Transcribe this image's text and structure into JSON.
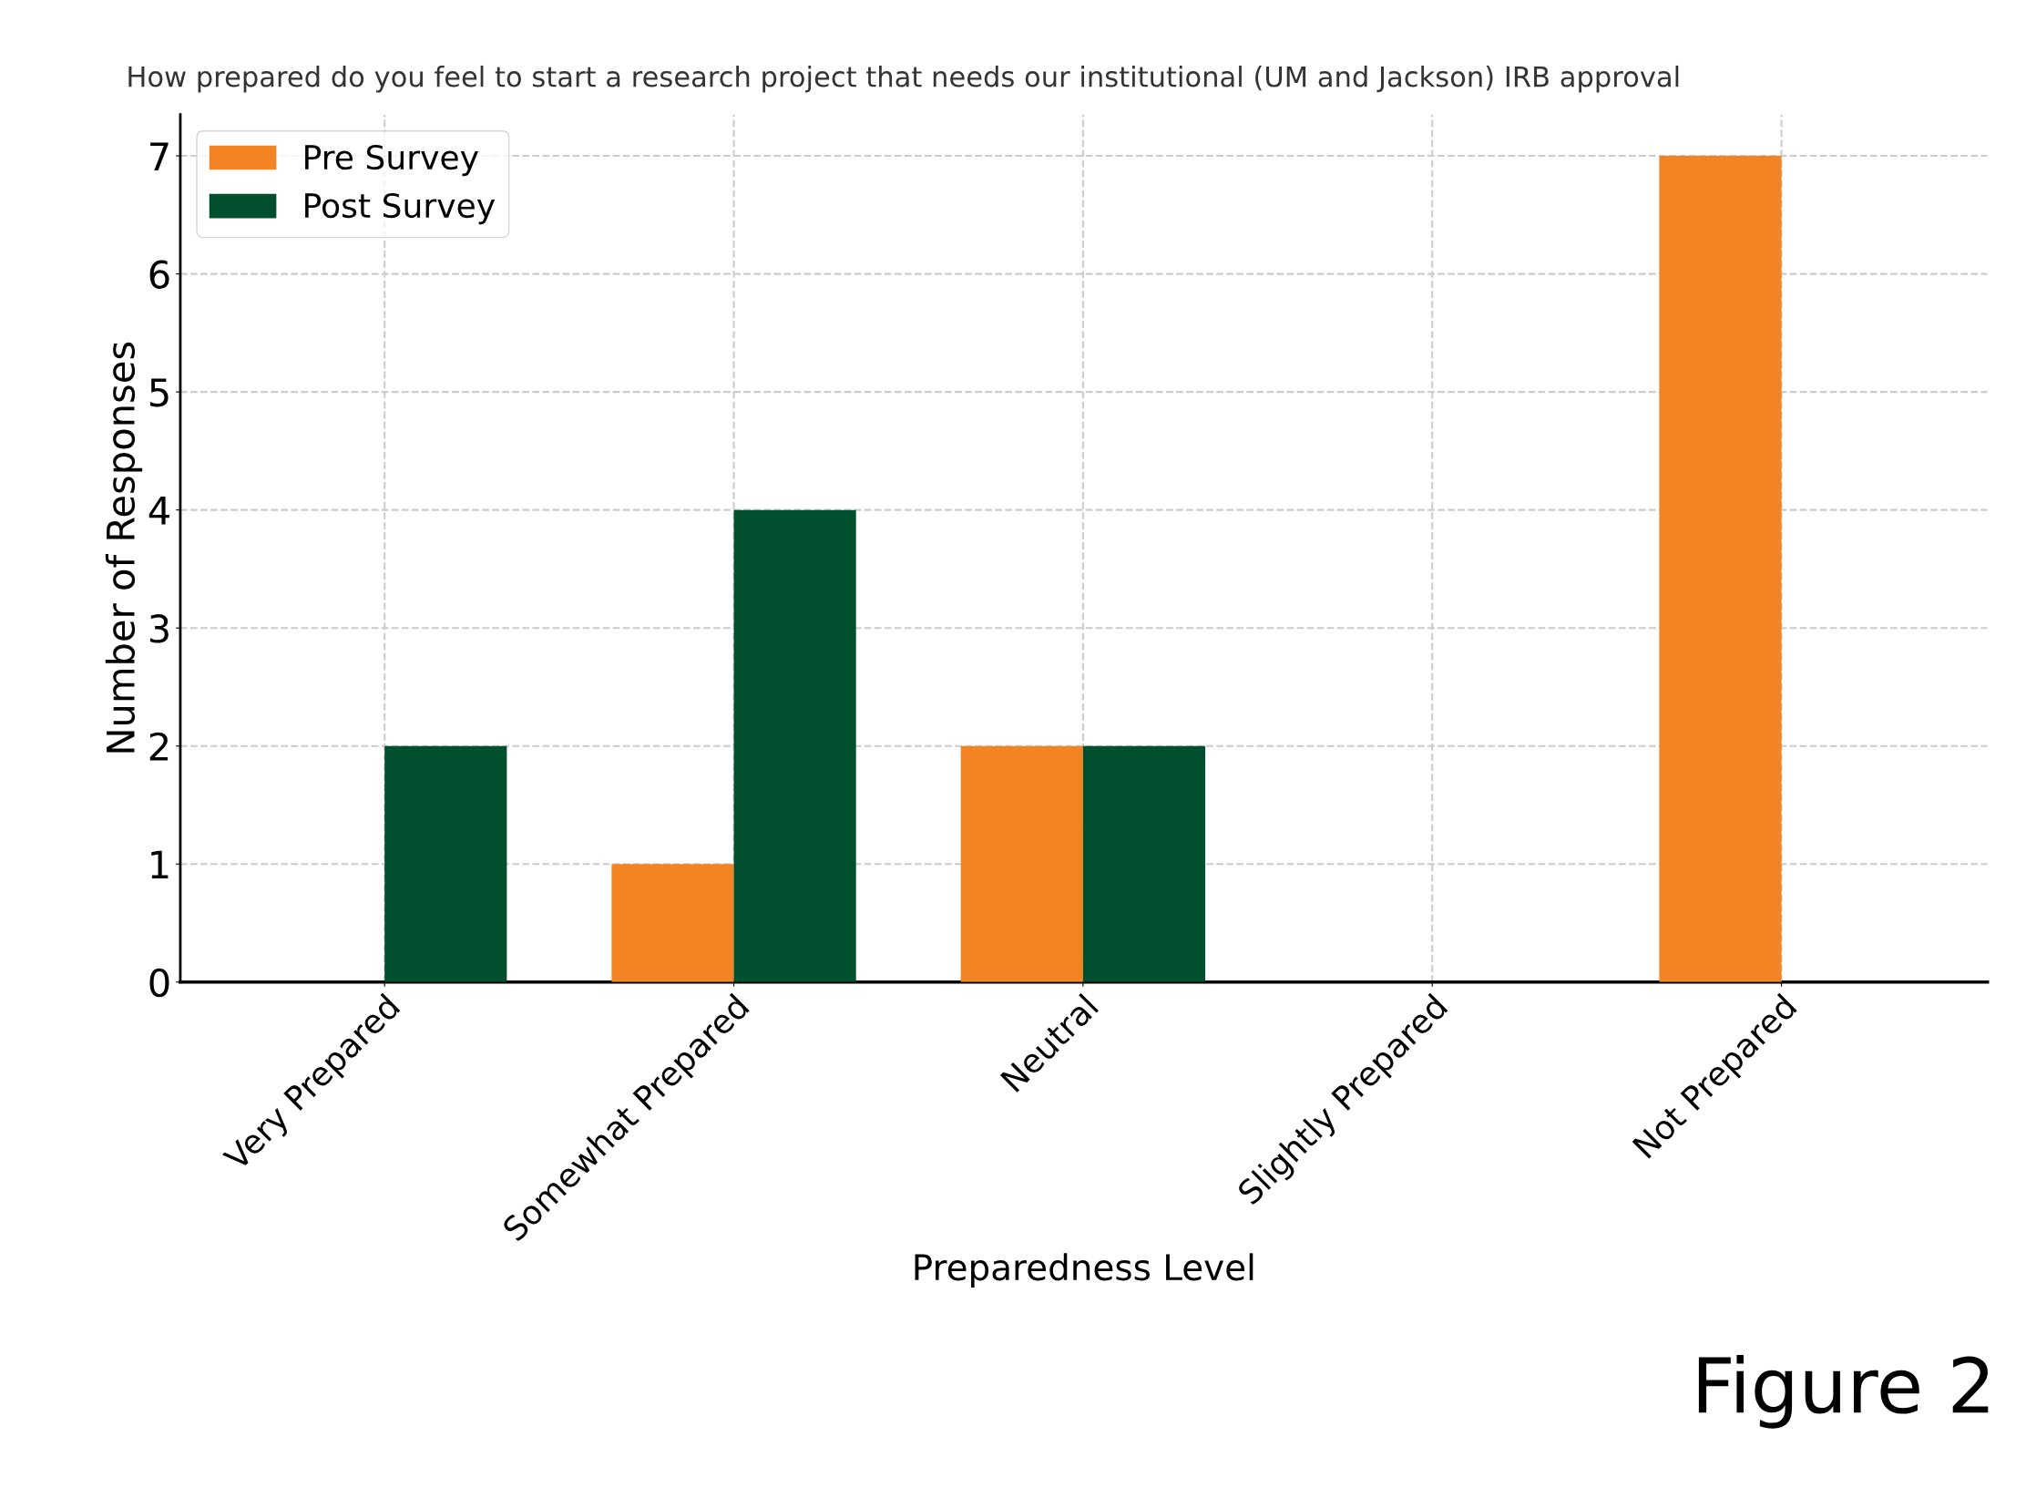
{
  "chart_data": {
    "type": "bar",
    "title": "How prepared do you feel to start a research project that needs our institutional (UM and Jackson) IRB approval",
    "xlabel": "Preparedness Level",
    "ylabel": "Number of Responses",
    "categories": [
      "Very Prepared",
      "Somewhat Prepared",
      "Neutral",
      "Slightly Prepared",
      "Not Prepared"
    ],
    "series": [
      {
        "name": "Pre Survey",
        "color": "#f28424",
        "values": [
          0,
          1,
          2,
          0,
          7
        ]
      },
      {
        "name": "Post Survey",
        "color": "#005030",
        "values": [
          2,
          4,
          2,
          0,
          0
        ]
      }
    ],
    "ylim": [
      0,
      7.35
    ],
    "yticks": [
      0,
      1,
      2,
      3,
      4,
      5,
      6,
      7
    ],
    "grid": true,
    "legend": "top left",
    "annotations": [
      "Figure 2"
    ]
  }
}
